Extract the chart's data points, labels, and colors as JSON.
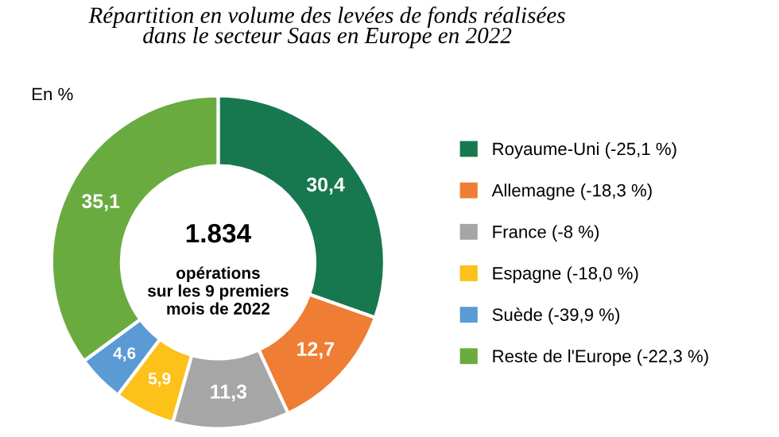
{
  "chart_data": {
    "type": "donut",
    "title": "Répartition en volume des levées de fonds réalisées\ndans le secteur Saas en Europe en 2022",
    "subtitle": "En %",
    "categories": [
      "Royaume-Uni (-25,1 %)",
      "Allemagne (-18,3 %)",
      "France (-8 %)",
      "Espagne (-18,0 %)",
      "Suède (-39,9 %)",
      "Reste de l'Europe (-22,3 %)"
    ],
    "values": [
      30.4,
      12.7,
      11.3,
      5.9,
      4.6,
      35.1
    ],
    "value_labels": [
      "30,4",
      "12,7",
      "11,3",
      "5,9",
      "4,6",
      "35,1"
    ],
    "colors": [
      "#17784f",
      "#ef7d33",
      "#a6a6a6",
      "#fcc21a",
      "#5b9bd5",
      "#6aab3f"
    ],
    "annotations": [
      "1.834",
      "opérations\nsur les 9 premiers\nmois de 2022"
    ],
    "legend": "right"
  }
}
